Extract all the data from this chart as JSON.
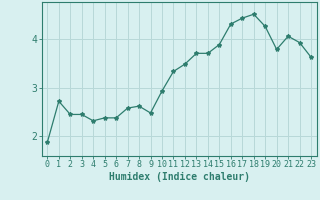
{
  "x": [
    0,
    1,
    2,
    3,
    4,
    5,
    6,
    7,
    8,
    9,
    10,
    11,
    12,
    13,
    14,
    15,
    16,
    17,
    18,
    19,
    20,
    21,
    22,
    23
  ],
  "y": [
    1.88,
    2.72,
    2.45,
    2.45,
    2.32,
    2.38,
    2.38,
    2.58,
    2.62,
    2.48,
    2.93,
    3.33,
    3.48,
    3.7,
    3.7,
    3.88,
    4.3,
    4.42,
    4.5,
    4.25,
    3.78,
    4.05,
    3.92,
    3.62
  ],
  "line_color": "#2e7d6e",
  "marker": "*",
  "marker_size": 3,
  "bg_color": "#d8f0f0",
  "grid_color": "#b8d8d8",
  "xlabel": "Humidex (Indice chaleur)",
  "xlabel_fontsize": 7,
  "tick_fontsize": 6,
  "ytick_fontsize": 7,
  "yticks": [
    2,
    3,
    4
  ],
  "ylim": [
    1.6,
    4.75
  ],
  "xlim": [
    -0.5,
    23.5
  ],
  "title": ""
}
